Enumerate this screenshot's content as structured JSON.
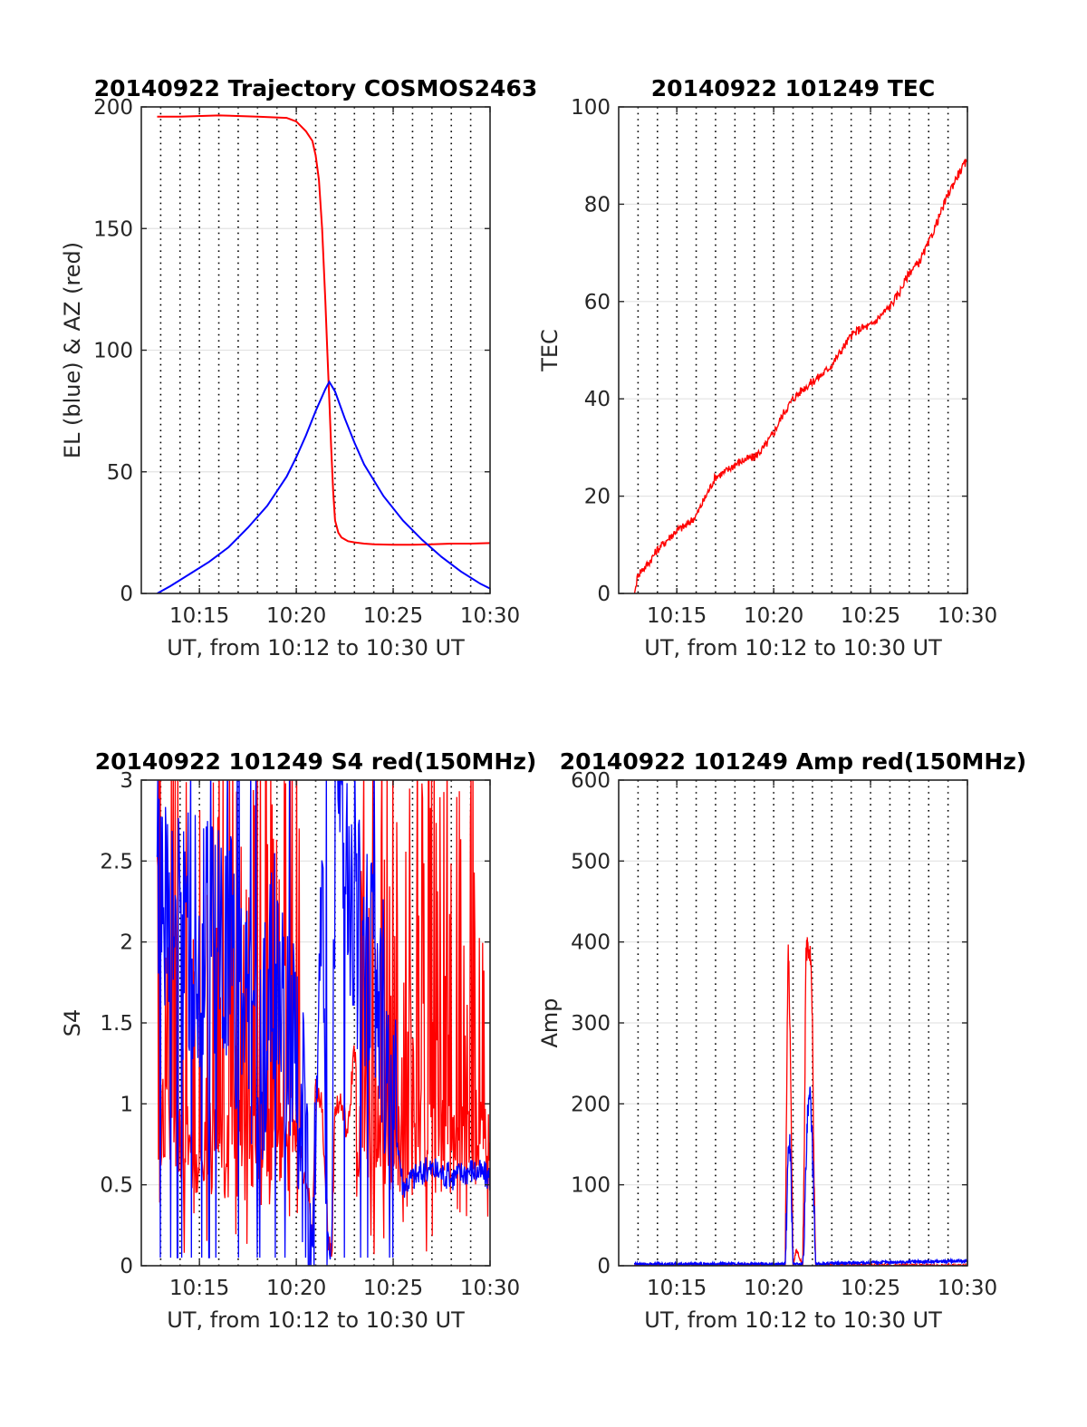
{
  "chart_data": [
    {
      "id": "trajectory",
      "type": "line",
      "title": "20140922 Trajectory COSMOS2463",
      "xlabel": "UT, from 10:12 to 10:30 UT",
      "ylabel": "EL (blue) & AZ (red)",
      "xlim": [
        "10:12",
        "10:30"
      ],
      "ylim": [
        0,
        200
      ],
      "x_ticks": [
        "10:15",
        "10:20",
        "10:25",
        "10:30"
      ],
      "y_ticks": [
        0,
        50,
        100,
        150,
        200
      ],
      "grid": true,
      "series": [
        {
          "color": "#ff0000",
          "x": [
            "10:12:49",
            "10:14:00",
            "10:16:00",
            "10:18:00",
            "10:19:30",
            "10:20:00",
            "10:20:30",
            "10:20:50",
            "10:21:00",
            "10:21:10",
            "10:21:20",
            "10:21:30",
            "10:21:36",
            "10:21:42",
            "10:21:48",
            "10:21:54",
            "10:22:00",
            "10:22:10",
            "10:22:20",
            "10:22:40",
            "10:23:00",
            "10:23:30",
            "10:24:00",
            "10:25:00",
            "10:26:00",
            "10:27:00",
            "10:28:00",
            "10:29:00",
            "10:30:00"
          ],
          "y": [
            196,
            196,
            196.5,
            196,
            195.5,
            194,
            190,
            186,
            180,
            170,
            150,
            120,
            100,
            80,
            60,
            42,
            30,
            25,
            23,
            21.5,
            21,
            20.5,
            20.2,
            20,
            20,
            20.2,
            20.5,
            20.5,
            20.7
          ]
        },
        {
          "color": "#0000ff",
          "x": [
            "10:12:49",
            "10:13:30",
            "10:14:30",
            "10:15:30",
            "10:16:30",
            "10:17:30",
            "10:18:30",
            "10:19:30",
            "10:20:00",
            "10:20:30",
            "10:21:00",
            "10:21:30",
            "10:21:42",
            "10:22:00",
            "10:22:30",
            "10:23:00",
            "10:23:30",
            "10:24:30",
            "10:25:30",
            "10:26:30",
            "10:27:30",
            "10:28:30",
            "10:29:30",
            "10:30:00"
          ],
          "y": [
            0,
            3,
            8,
            13,
            19,
            27,
            36,
            48,
            56,
            65,
            75,
            84,
            87,
            83,
            72,
            62,
            53,
            40,
            30,
            22,
            15,
            9,
            4,
            2
          ]
        }
      ]
    },
    {
      "id": "tec",
      "type": "line",
      "title": "20140922 101249 TEC",
      "xlabel": "UT, from 10:12 to 10:30 UT",
      "ylabel": "TEC",
      "xlim": [
        "10:12",
        "10:30"
      ],
      "ylim": [
        0,
        100
      ],
      "x_ticks": [
        "10:15",
        "10:20",
        "10:25",
        "10:30"
      ],
      "y_ticks": [
        0,
        20,
        40,
        60,
        80,
        100
      ],
      "grid": true,
      "series": [
        {
          "color": "#ff0000",
          "x": [
            "10:12:49",
            "10:13:00",
            "10:13:30",
            "10:14:00",
            "10:14:30",
            "10:15:00",
            "10:15:30",
            "10:16:00",
            "10:16:30",
            "10:17:00",
            "10:17:30",
            "10:18:00",
            "10:18:30",
            "10:19:00",
            "10:19:30",
            "10:20:00",
            "10:20:30",
            "10:21:00",
            "10:21:30",
            "10:22:00",
            "10:22:30",
            "10:23:00",
            "10:23:30",
            "10:24:00",
            "10:24:30",
            "10:25:00",
            "10:25:30",
            "10:26:00",
            "10:26:30",
            "10:27:00",
            "10:27:30",
            "10:28:00",
            "10:28:30",
            "10:29:00",
            "10:29:30",
            "10:30:00"
          ],
          "y": [
            0,
            4,
            6,
            9,
            11,
            13,
            14,
            16,
            20,
            24,
            25,
            26.5,
            27.5,
            28,
            30,
            33,
            37,
            40,
            42,
            43.5,
            45,
            47,
            50,
            53,
            54.5,
            55,
            57,
            59,
            62,
            66,
            68,
            72,
            77,
            82,
            86,
            89
          ]
        }
      ]
    },
    {
      "id": "s4",
      "type": "line",
      "title": "20140922 101249 S4 red(150MHz)",
      "xlabel": "UT, from 10:12 to 10:30 UT",
      "ylabel": "S4",
      "xlim": [
        "10:12",
        "10:30"
      ],
      "ylim": [
        0,
        3
      ],
      "x_ticks": [
        "10:15",
        "10:20",
        "10:25",
        "10:30"
      ],
      "y_ticks": [
        0,
        0.5,
        1,
        1.5,
        2,
        2.5,
        3
      ],
      "grid": true,
      "series": [
        {
          "color": "#ff0000",
          "x": [
            "10:12:49",
            "10:13:30",
            "10:14:30",
            "10:15:30",
            "10:16:30",
            "10:17:30",
            "10:18:00",
            "10:18:30",
            "10:19:00",
            "10:19:30",
            "10:20:00",
            "10:20:20",
            "10:20:40",
            "10:20:50",
            "10:21:00",
            "10:21:10",
            "10:21:20",
            "10:21:30",
            "10:21:40",
            "10:21:50",
            "10:22:00",
            "10:22:20",
            "10:22:40",
            "10:23:00",
            "10:23:10",
            "10:23:30",
            "10:24:00",
            "10:25:00",
            "10:26:00",
            "10:27:00",
            "10:28:00",
            "10:29:00",
            "10:30:00"
          ],
          "y": [
            2.1,
            1.7,
            1.5,
            1.4,
            1.3,
            1.2,
            1.1,
            1.0,
            1.2,
            1.1,
            1.0,
            0.6,
            0.4,
            0.07,
            1.2,
            1.0,
            1.0,
            0.5,
            0.15,
            0.08,
            1.0,
            1.0,
            0.8,
            1.4,
            0.9,
            1.5,
            1.5,
            1.5,
            1.5,
            1.5,
            1.5,
            1.5,
            1.5
          ],
          "note": "dense noise band spanning 0 to 3 most of the interval"
        },
        {
          "color": "#0000ff",
          "x": [
            "10:12:49",
            "10:13:30",
            "10:14:30",
            "10:15:30",
            "10:16:30",
            "10:17:30",
            "10:18:00",
            "10:18:30",
            "10:19:00",
            "10:19:30",
            "10:20:00",
            "10:20:20",
            "10:20:40",
            "10:20:50",
            "10:21:00",
            "10:21:10",
            "10:21:20",
            "10:21:30",
            "10:21:40",
            "10:21:50",
            "10:22:00",
            "10:22:20",
            "10:23:00",
            "10:24:00",
            "10:25:00",
            "10:25:30",
            "10:26:00",
            "10:27:00",
            "10:28:00",
            "10:29:00",
            "10:30:00"
          ],
          "y": [
            2.3,
            2.2,
            2.0,
            2.0,
            1.9,
            1.5,
            1.3,
            1.6,
            1.8,
            1.5,
            1.2,
            0.9,
            0.5,
            0.1,
            1.0,
            2.0,
            2.5,
            0.6,
            0.1,
            0.08,
            2.8,
            2.8,
            2.0,
            2.0,
            1.0,
            0.5,
            0.55,
            0.6,
            0.55,
            0.6,
            0.55
          ]
        }
      ]
    },
    {
      "id": "amp",
      "type": "line",
      "title": "20140922 101249 Amp red(150MHz)",
      "xlabel": "UT, from 10:12 to 10:30 UT",
      "ylabel": "Amp",
      "xlim": [
        "10:12",
        "10:30"
      ],
      "ylim": [
        0,
        600
      ],
      "x_ticks": [
        "10:15",
        "10:20",
        "10:25",
        "10:30"
      ],
      "y_ticks": [
        0,
        100,
        200,
        300,
        400,
        500,
        600
      ],
      "grid": true,
      "series": [
        {
          "color": "#ff0000",
          "x": [
            "10:12:49",
            "10:20:36",
            "10:20:40",
            "10:20:45",
            "10:20:50",
            "10:20:55",
            "10:21:00",
            "10:21:10",
            "10:21:20",
            "10:21:30",
            "10:21:36",
            "10:21:40",
            "10:21:45",
            "10:21:50",
            "10:21:55",
            "10:22:00",
            "10:22:05",
            "10:22:10",
            "10:30:00"
          ],
          "y": [
            0,
            0,
            200,
            400,
            300,
            150,
            0,
            20,
            10,
            0,
            200,
            380,
            405,
            395,
            380,
            300,
            100,
            0,
            0
          ]
        },
        {
          "color": "#0000ff",
          "x": [
            "10:12:49",
            "10:20:36",
            "10:20:40",
            "10:20:45",
            "10:20:50",
            "10:20:55",
            "10:21:00",
            "10:21:30",
            "10:21:36",
            "10:21:40",
            "10:21:45",
            "10:21:50",
            "10:21:55",
            "10:22:00",
            "10:22:05",
            "10:22:10",
            "10:25:00",
            "10:30:00"
          ],
          "y": [
            2,
            2,
            60,
            130,
            160,
            90,
            2,
            2,
            60,
            120,
            180,
            200,
            210,
            140,
            80,
            2,
            4,
            6
          ]
        }
      ]
    }
  ]
}
